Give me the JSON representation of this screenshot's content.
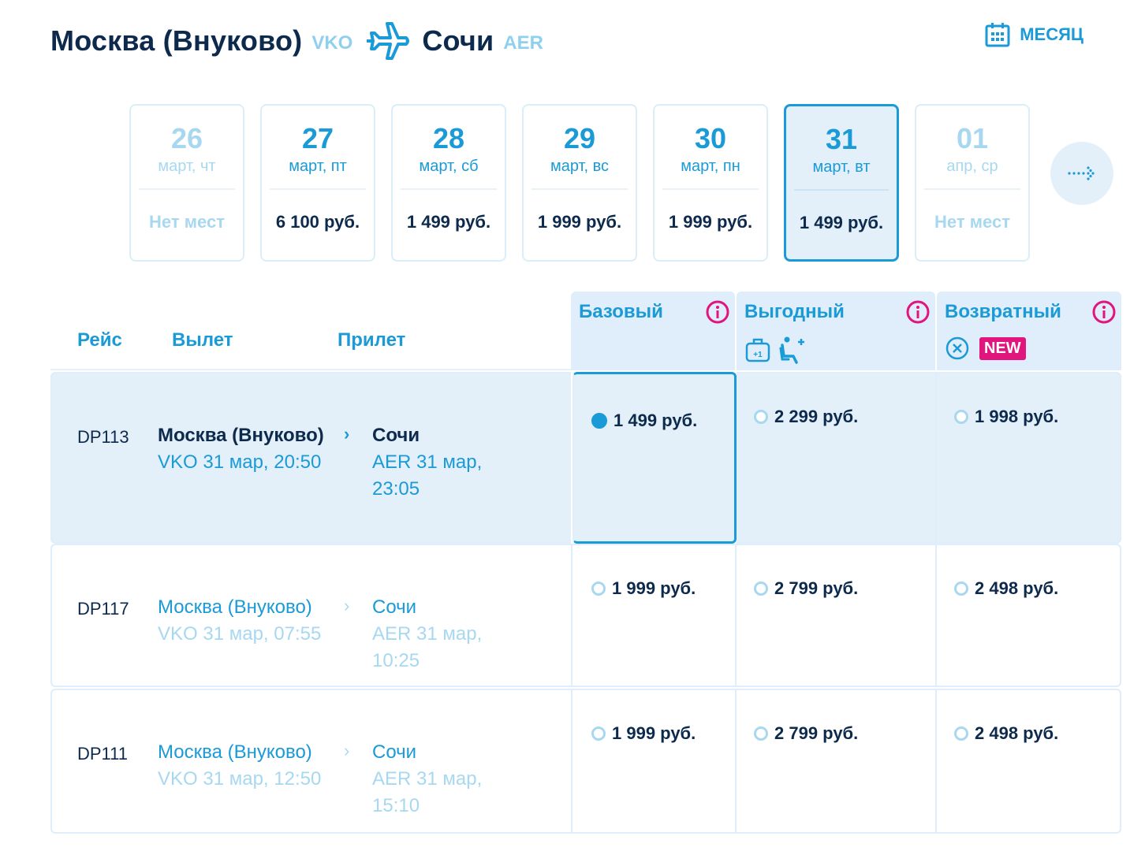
{
  "header": {
    "origin_city": "Москва (Внуково)",
    "origin_code": "VKO",
    "dest_city": "Сочи",
    "dest_code": "AER",
    "month_label": "МЕСЯЦ"
  },
  "dates": [
    {
      "day": "26",
      "dow": "март, чт",
      "price": "Нет мест",
      "state": "muted"
    },
    {
      "day": "27",
      "dow": "март, пт",
      "price": "6 100 руб.",
      "state": "normal"
    },
    {
      "day": "28",
      "dow": "март, сб",
      "price": "1 499 руб.",
      "state": "normal"
    },
    {
      "day": "29",
      "dow": "март, вс",
      "price": "1 999 руб.",
      "state": "normal"
    },
    {
      "day": "30",
      "dow": "март, пн",
      "price": "1 999 руб.",
      "state": "normal"
    },
    {
      "day": "31",
      "dow": "март, вт",
      "price": "1 499 руб.",
      "state": "selected"
    },
    {
      "day": "01",
      "dow": "апр, ср",
      "price": "Нет мест",
      "state": "muted"
    }
  ],
  "table": {
    "col_flight": "Рейс",
    "col_departure": "Вылет",
    "col_arrival": "Прилет",
    "fares": [
      {
        "name": "Базовый"
      },
      {
        "name": "Выгодный"
      },
      {
        "name": "Возвратный",
        "badge": "NEW"
      }
    ]
  },
  "flights": [
    {
      "number": "DP113",
      "dep_city": "Москва (Внуково)",
      "dep_time": "VKO 31 мар, 20:50",
      "arr_city": "Сочи",
      "arr_time": "AER 31 мар, 23:05",
      "prices": [
        "1 499 руб.",
        "2 299 руб.",
        "1 998 руб."
      ]
    },
    {
      "number": "DP117",
      "dep_city": "Москва (Внуково)",
      "dep_time": "VKO 31 мар, 07:55",
      "arr_city": "Сочи",
      "arr_time": "AER 31 мар, 10:25",
      "prices": [
        "1 999 руб.",
        "2 799 руб.",
        "2 498 руб."
      ]
    },
    {
      "number": "DP111",
      "dep_city": "Москва (Внуково)",
      "dep_time": "VKO 31 мар, 12:50",
      "arr_city": "Сочи",
      "arr_time": "AER 31 мар, 15:10",
      "prices": [
        "1 999 руб.",
        "2 799 руб.",
        "2 498 руб."
      ]
    }
  ],
  "colors": {
    "accent": "#1a9ad6",
    "dark": "#0d2a4d",
    "muted": "#a8d8f0",
    "badge": "#e0157d"
  }
}
